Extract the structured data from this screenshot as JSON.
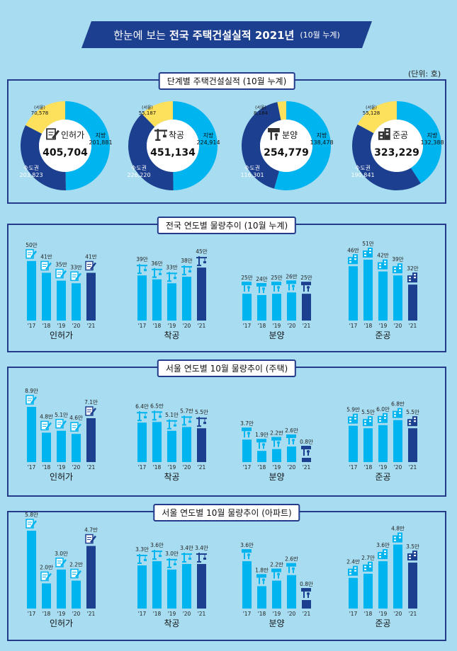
{
  "header": {
    "prefix": "한눈에 보는",
    "title": "전국 주택건설실적 2021년",
    "sub": "(10월 누계)"
  },
  "unit": "(단위: 호)",
  "colors": {
    "dark": "#1d3f8f",
    "light": "#00b4f0",
    "yellow": "#fde05c",
    "white": "#ffffff"
  },
  "panels": {
    "p1": {
      "title": "단계별 주택건설실적 (10월 누계)"
    },
    "p2": {
      "title": "전국 연도별 물량추이 (10월 누계)"
    },
    "p3": {
      "title": "서울 연도별 10월  물량추이 (주택)"
    },
    "p4": {
      "title": "서울 연도별 10월  물량추이 (아파트)"
    }
  },
  "chart_data": [
    {
      "type": "pie",
      "title": "단계별 주택건설실적 (10월 누계)",
      "donuts": [
        {
          "label": "인허가",
          "icon": "permit-icon",
          "total": "405,704",
          "slices": [
            {
              "name": "지방",
              "value": 201881,
              "label": "201,881"
            },
            {
              "name": "수도권",
              "value": 203823,
              "label": "203,823"
            }
          ],
          "seoul": {
            "name": "(서울)",
            "value": 70578,
            "label": "70,578"
          }
        },
        {
          "label": "착공",
          "icon": "crane-icon",
          "total": "451,134",
          "slices": [
            {
              "name": "지방",
              "value": 224914,
              "label": "224,914"
            },
            {
              "name": "수도권",
              "value": 226220,
              "label": "226,220"
            }
          ],
          "seoul": {
            "name": "(서울)",
            "value": 55187,
            "label": "55,187"
          }
        },
        {
          "label": "분양",
          "icon": "sale-icon",
          "total": "254,779",
          "slices": [
            {
              "name": "지방",
              "value": 138478,
              "label": "138,478"
            },
            {
              "name": "수도권",
              "value": 116301,
              "label": "116,301"
            }
          ],
          "seoul": {
            "name": "(서울)",
            "value": 8184,
            "label": "8,184"
          }
        },
        {
          "label": "준공",
          "icon": "building-icon",
          "total": "323,229",
          "slices": [
            {
              "name": "지방",
              "value": 132388,
              "label": "132,388"
            },
            {
              "name": "수도권",
              "value": 190841,
              "label": "190,841"
            }
          ],
          "seoul": {
            "name": "(서울)",
            "value": 55128,
            "label": "55,128"
          }
        }
      ]
    },
    {
      "type": "bar",
      "title": "전국 연도별 물량추이 (10월 누계)",
      "unit_suffix": "만",
      "categories": [
        "'17",
        "'18",
        "'19",
        "'20",
        "'21"
      ],
      "groups": [
        {
          "name": "인허가",
          "icon": "permit-icon",
          "values": [
            50,
            41,
            35,
            33,
            41
          ],
          "labels": [
            "50만",
            "41만",
            "35만",
            "33만",
            "41만"
          ]
        },
        {
          "name": "착공",
          "icon": "crane-icon",
          "values": [
            39,
            36,
            33,
            38,
            45
          ],
          "labels": [
            "39만",
            "36만",
            "33만",
            "38만",
            "45만"
          ]
        },
        {
          "name": "분양",
          "icon": "sale-icon",
          "values": [
            25,
            24,
            25,
            26,
            25
          ],
          "labels": [
            "25만",
            "24만",
            "25만",
            "26만",
            "25만"
          ]
        },
        {
          "name": "준공",
          "icon": "building-icon",
          "values": [
            46,
            51,
            42,
            39,
            32
          ],
          "labels": [
            "46만",
            "51만",
            "42만",
            "39만",
            "32만"
          ]
        }
      ]
    },
    {
      "type": "bar",
      "title": "서울 연도별 10월  물량추이 (주택)",
      "categories": [
        "'17",
        "'18",
        "'19",
        "'20",
        "'21"
      ],
      "groups": [
        {
          "name": "인허가",
          "icon": "permit-icon",
          "values": [
            8.9,
            4.8,
            5.1,
            4.6,
            7.1
          ],
          "labels": [
            "8.9만",
            "4.8만",
            "5.1만",
            "4.6만",
            "7.1만"
          ]
        },
        {
          "name": "착공",
          "icon": "crane-icon",
          "values": [
            6.4,
            6.5,
            5.1,
            5.7,
            5.5
          ],
          "labels": [
            "6.4만",
            "6.5만",
            "5.1만",
            "5.7만",
            "5.5만"
          ]
        },
        {
          "name": "분양",
          "icon": "sale-icon",
          "values": [
            3.7,
            1.9,
            2.2,
            2.6,
            0.8
          ],
          "labels": [
            "3.7만",
            "1.9만",
            "2.2만",
            "2.6만",
            "0.8만"
          ]
        },
        {
          "name": "준공",
          "icon": "building-icon",
          "values": [
            5.9,
            5.5,
            6.0,
            6.8,
            5.5
          ],
          "labels": [
            "5.9만",
            "5.5만",
            "6.0만",
            "6.8만",
            "5.5만"
          ]
        }
      ]
    },
    {
      "type": "bar",
      "title": "서울 연도별 10월  물량추이 (아파트)",
      "categories": [
        "'17",
        "'18",
        "'19",
        "'20",
        "'21"
      ],
      "groups": [
        {
          "name": "인허가",
          "icon": "permit-icon",
          "values": [
            5.8,
            2.0,
            3.0,
            2.2,
            4.7
          ],
          "labels": [
            "5.8만",
            "2.0만",
            "3.0만",
            "2.2만",
            "4.7만"
          ]
        },
        {
          "name": "착공",
          "icon": "crane-icon",
          "values": [
            3.3,
            3.6,
            3.0,
            3.4,
            3.4
          ],
          "labels": [
            "3.3만",
            "3.6만",
            "3.0만",
            "3.4만",
            "3.4만"
          ]
        },
        {
          "name": "분양",
          "icon": "sale-icon",
          "values": [
            3.6,
            1.8,
            2.2,
            2.6,
            0.8
          ],
          "labels": [
            "3.6만",
            "1.8만",
            "2.2만",
            "2.6만",
            "0.8만"
          ]
        },
        {
          "name": "준공",
          "icon": "building-icon",
          "values": [
            2.4,
            2.7,
            3.6,
            4.8,
            3.5
          ],
          "labels": [
            "2.4만",
            "2.7만",
            "3.6만",
            "4.8만",
            "3.5만"
          ]
        }
      ]
    }
  ]
}
